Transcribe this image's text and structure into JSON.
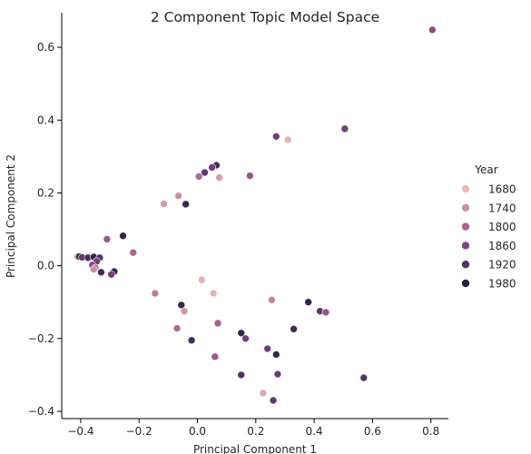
{
  "chart_data": {
    "type": "scatter",
    "title": "2 Component Topic Model Space",
    "xlabel": "Principal Component 1",
    "ylabel": "Principal Component 2",
    "xlim": [
      -0.465,
      0.86
    ],
    "ylim": [
      -0.42,
      0.695
    ],
    "xticks": [
      -0.4,
      -0.2,
      0.0,
      0.2,
      0.4,
      0.6,
      0.8
    ],
    "xtick_labels": [
      "−0.4",
      "−0.2",
      "0.0",
      "0.2",
      "0.4",
      "0.6",
      "0.8"
    ],
    "yticks": [
      -0.4,
      -0.2,
      0.0,
      0.2,
      0.4,
      0.6
    ],
    "ytick_labels": [
      "−0.4",
      "−0.2",
      "0.0",
      "0.2",
      "0.4",
      "0.6"
    ],
    "grid": false,
    "legend": {
      "title": "Year",
      "placement": "right",
      "entries": [
        {
          "label": "1680",
          "color": "#e8bcb8"
        },
        {
          "label": "1740",
          "color": "#cc8fa3"
        },
        {
          "label": "1800",
          "color": "#a9648f"
        },
        {
          "label": "1860",
          "color": "#7e4683"
        },
        {
          "label": "1920",
          "color": "#533162"
        },
        {
          "label": "1980",
          "color": "#2c1d3f"
        }
      ]
    },
    "points": [
      {
        "x": 0.805,
        "y": 0.648,
        "year": 1840
      },
      {
        "x": 0.505,
        "y": 0.376,
        "year": 1880
      },
      {
        "x": 0.27,
        "y": 0.355,
        "year": 1880
      },
      {
        "x": 0.31,
        "y": 0.346,
        "year": 1690
      },
      {
        "x": 0.065,
        "y": 0.276,
        "year": 1940
      },
      {
        "x": 0.05,
        "y": 0.27,
        "year": 1880
      },
      {
        "x": 0.025,
        "y": 0.256,
        "year": 1900
      },
      {
        "x": 0.005,
        "y": 0.245,
        "year": 1790
      },
      {
        "x": 0.075,
        "y": 0.242,
        "year": 1720
      },
      {
        "x": 0.18,
        "y": 0.247,
        "year": 1820
      },
      {
        "x": -0.065,
        "y": 0.192,
        "year": 1740
      },
      {
        "x": -0.115,
        "y": 0.17,
        "year": 1720
      },
      {
        "x": -0.04,
        "y": 0.169,
        "year": 1960
      },
      {
        "x": -0.255,
        "y": 0.082,
        "year": 1960
      },
      {
        "x": -0.31,
        "y": 0.073,
        "year": 1820
      },
      {
        "x": -0.22,
        "y": 0.036,
        "year": 1800
      },
      {
        "x": -0.41,
        "y": 0.025,
        "year": 1770
      },
      {
        "x": -0.405,
        "y": 0.025,
        "year": 1960
      },
      {
        "x": -0.395,
        "y": 0.023,
        "year": 1900
      },
      {
        "x": -0.375,
        "y": 0.022,
        "year": 1940
      },
      {
        "x": -0.355,
        "y": 0.024,
        "year": 1960
      },
      {
        "x": -0.335,
        "y": 0.022,
        "year": 1920
      },
      {
        "x": -0.345,
        "y": 0.012,
        "year": 1880
      },
      {
        "x": -0.36,
        "y": 0.002,
        "year": 1860
      },
      {
        "x": -0.35,
        "y": -0.006,
        "year": 1820
      },
      {
        "x": -0.355,
        "y": -0.01,
        "year": 1740
      },
      {
        "x": -0.33,
        "y": -0.018,
        "year": 1940
      },
      {
        "x": -0.285,
        "y": -0.016,
        "year": 1960
      },
      {
        "x": -0.295,
        "y": -0.024,
        "year": 1880
      },
      {
        "x": 0.015,
        "y": -0.039,
        "year": 1690
      },
      {
        "x": -0.145,
        "y": -0.076,
        "year": 1770
      },
      {
        "x": 0.055,
        "y": -0.076,
        "year": 1690
      },
      {
        "x": 0.255,
        "y": -0.094,
        "year": 1760
      },
      {
        "x": 0.38,
        "y": -0.1,
        "year": 1960
      },
      {
        "x": -0.055,
        "y": -0.108,
        "year": 1960
      },
      {
        "x": -0.045,
        "y": -0.125,
        "year": 1730
      },
      {
        "x": 0.42,
        "y": -0.125,
        "year": 1900
      },
      {
        "x": 0.44,
        "y": -0.128,
        "year": 1830
      },
      {
        "x": 0.07,
        "y": -0.158,
        "year": 1810
      },
      {
        "x": -0.07,
        "y": -0.172,
        "year": 1790
      },
      {
        "x": 0.33,
        "y": -0.174,
        "year": 1940
      },
      {
        "x": 0.15,
        "y": -0.185,
        "year": 1960
      },
      {
        "x": 0.165,
        "y": -0.2,
        "year": 1880
      },
      {
        "x": -0.02,
        "y": -0.205,
        "year": 1940
      },
      {
        "x": 0.24,
        "y": -0.228,
        "year": 1880
      },
      {
        "x": 0.27,
        "y": -0.244,
        "year": 1960
      },
      {
        "x": 0.06,
        "y": -0.25,
        "year": 1820
      },
      {
        "x": 0.15,
        "y": -0.3,
        "year": 1920
      },
      {
        "x": 0.275,
        "y": -0.298,
        "year": 1880
      },
      {
        "x": 0.57,
        "y": -0.308,
        "year": 1920
      },
      {
        "x": 0.225,
        "y": -0.35,
        "year": 1710
      },
      {
        "x": 0.26,
        "y": -0.37,
        "year": 1900
      }
    ]
  }
}
